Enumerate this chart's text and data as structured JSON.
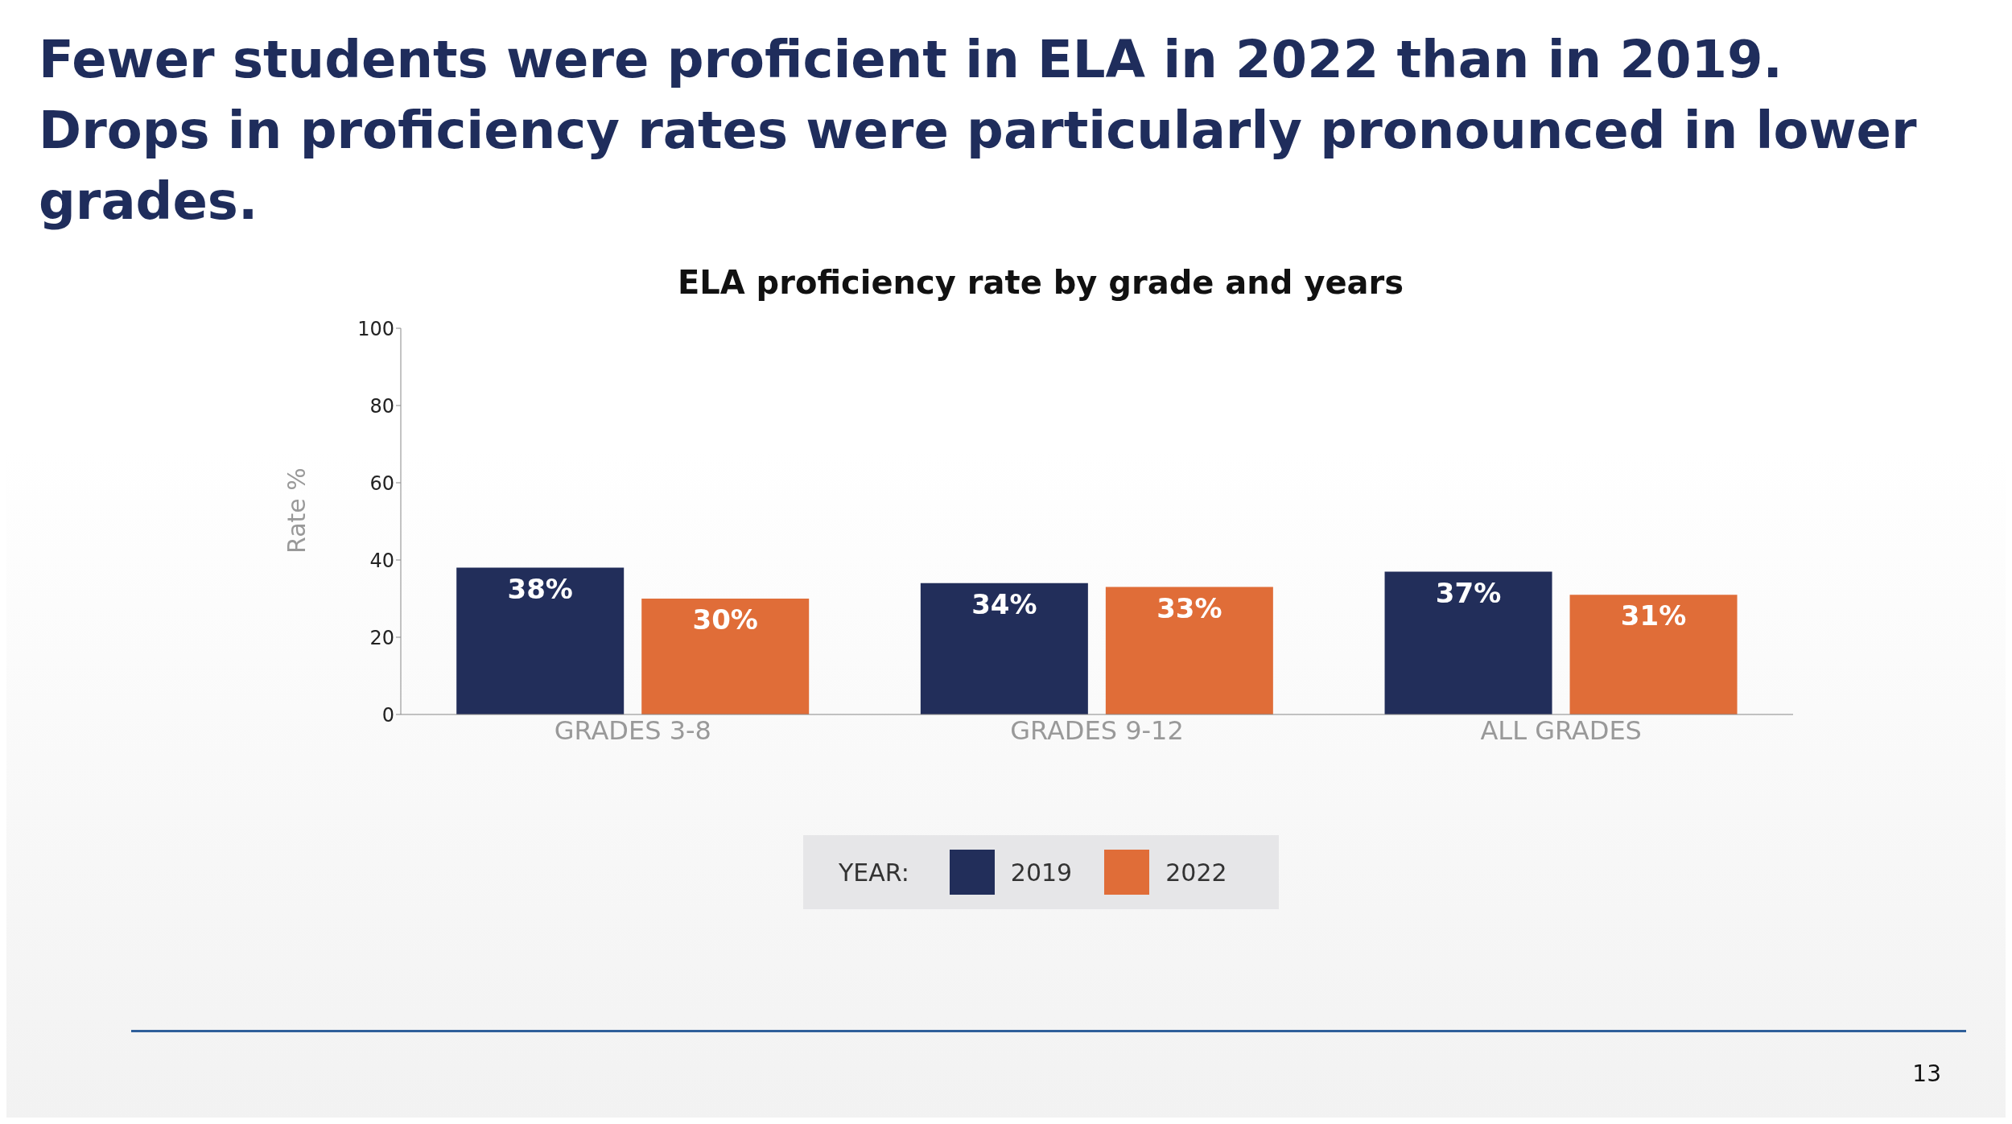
{
  "chart_data": {
    "type": "bar",
    "title": "Fewer students were proficient in ELA in 2022 than in 2019.\nDrops in proficiency rates were particularly pronounced in lower grades.",
    "subtitle": "ELA proficiency rate by grade and years",
    "ylabel": "Rate %",
    "legend_title": "YEAR:",
    "categories": [
      "GRADES 3-8",
      "GRADES 9-12",
      "ALL GRADES"
    ],
    "series": [
      {
        "name": "2019",
        "color": "#222e5a",
        "values": [
          38,
          34,
          37
        ],
        "value_labels": [
          "38%",
          "34%",
          "37%"
        ]
      },
      {
        "name": "2022",
        "color": "#e06d38",
        "values": [
          30,
          33,
          31
        ],
        "value_labels": [
          "30%",
          "33%",
          "31%"
        ]
      }
    ],
    "ylim": [
      0,
      100
    ],
    "yticks": [
      0,
      20,
      40,
      60,
      80,
      100
    ],
    "grid": false,
    "legend": "bottom",
    "annotations": [
      "13"
    ]
  }
}
